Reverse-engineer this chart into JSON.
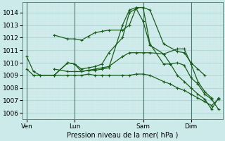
{
  "xlabel": "Pression niveau de la mer( hPa )",
  "bg_color": "#cdeaea",
  "grid_major_color": "#b0d4d4",
  "grid_minor_color": "#d8ecec",
  "line_color": "#1a5c1a",
  "ylim": [
    1005.5,
    1014.8
  ],
  "yticks": [
    1006,
    1007,
    1008,
    1009,
    1010,
    1011,
    1012,
    1013,
    1014
  ],
  "xlim": [
    -0.3,
    14.3
  ],
  "xtick_labels": [
    "Ven",
    "Lun",
    "Sam",
    "Dim"
  ],
  "xtick_positions": [
    0,
    3.5,
    8.5,
    12
  ],
  "vline_positions": [
    0,
    3.5,
    8.5,
    12
  ],
  "lines": [
    {
      "x": [
        0,
        0.5,
        1,
        2,
        3,
        3.5,
        4,
        4.5,
        5,
        5.5,
        6,
        7,
        7.5,
        8,
        8.5,
        9,
        10,
        11,
        11.5,
        12,
        12.5,
        13
      ],
      "y": [
        1010.5,
        1009.3,
        1009.0,
        1009.0,
        1010.0,
        1009.9,
        1009.3,
        1009.4,
        1009.4,
        1009.5,
        1009.6,
        1013.0,
        1014.2,
        1014.4,
        1014.4,
        1014.2,
        1011.5,
        1010.9,
        1010.8,
        1010.0,
        1009.5,
        1009.0
      ]
    },
    {
      "x": [
        0,
        0.5,
        1,
        2,
        3,
        3.5,
        4,
        4.5,
        5,
        5.5,
        6,
        7,
        7.5,
        8,
        8.5,
        9,
        10,
        11,
        11.5,
        12,
        12.5,
        13,
        13.5
      ],
      "y": [
        1009.5,
        1009.0,
        1009.0,
        1009.0,
        1010.0,
        1009.9,
        1009.5,
        1009.6,
        1009.7,
        1009.9,
        1010.8,
        1012.0,
        1014.0,
        1014.3,
        1013.3,
        1011.4,
        1010.7,
        1011.1,
        1011.1,
        1009.9,
        1008.5,
        1007.7,
        1007.2
      ]
    },
    {
      "x": [
        2,
        3,
        3.5,
        4,
        4.5,
        5,
        5.5,
        6,
        7,
        7.5,
        8,
        8.5,
        9,
        10,
        10.5,
        11,
        11.5,
        12,
        12.5,
        13,
        13.5,
        14
      ],
      "y": [
        1012.2,
        1011.9,
        1011.9,
        1011.8,
        1012.1,
        1012.4,
        1012.5,
        1012.6,
        1012.6,
        1013.0,
        1014.4,
        1014.4,
        1011.5,
        1009.9,
        1009.9,
        1010.0,
        1009.8,
        1008.8,
        1008.3,
        1007.5,
        1007.1,
        1006.3
      ]
    },
    {
      "x": [
        2,
        3,
        3.5,
        4,
        4.5,
        5,
        5.5,
        6,
        7,
        7.5,
        8,
        8.5,
        9,
        10,
        10.5,
        11,
        11.5,
        12,
        12.5,
        13,
        13.5,
        14
      ],
      "y": [
        1009.5,
        1009.3,
        1009.3,
        1009.3,
        1009.4,
        1009.5,
        1009.6,
        1009.7,
        1010.5,
        1010.8,
        1010.8,
        1010.8,
        1010.8,
        1010.7,
        1009.9,
        1009.0,
        1008.5,
        1008.0,
        1007.5,
        1007.1,
        1006.3,
        1007.2
      ]
    },
    {
      "x": [
        2,
        3,
        3.5,
        4,
        4.5,
        5,
        5.5,
        6,
        7,
        7.5,
        8,
        8.5,
        9,
        10,
        10.5,
        11,
        11.5,
        12,
        12.5,
        13,
        13.5,
        14
      ],
      "y": [
        1009.0,
        1009.0,
        1009.0,
        1009.0,
        1009.1,
        1009.0,
        1009.0,
        1009.0,
        1009.0,
        1009.0,
        1009.1,
        1009.1,
        1009.0,
        1008.5,
        1008.3,
        1008.0,
        1007.8,
        1007.5,
        1007.2,
        1006.9,
        1006.6,
        1007.1
      ]
    }
  ]
}
